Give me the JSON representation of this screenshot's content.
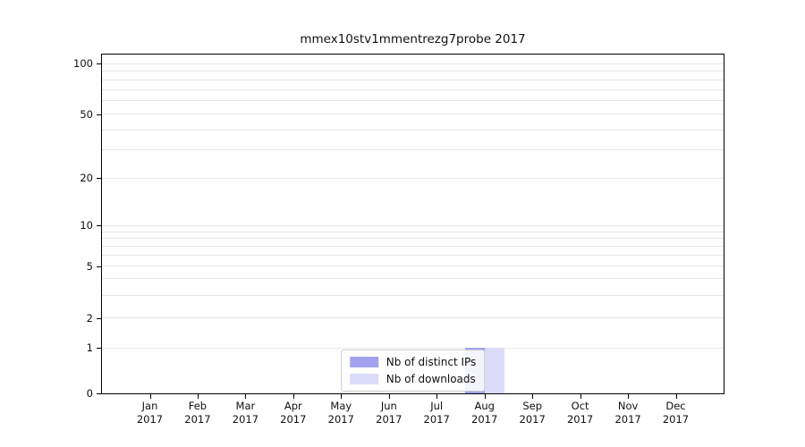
{
  "chart_data": {
    "type": "bar",
    "title": "mmex10stv1mmentrezg7probe 2017",
    "x": {
      "months": [
        "Jan",
        "Feb",
        "Mar",
        "Apr",
        "May",
        "Jun",
        "Jul",
        "Aug",
        "Sep",
        "Oct",
        "Nov",
        "Dec"
      ],
      "year": "2017"
    },
    "series": [
      {
        "name": "Nb of distinct IPs",
        "color": "#a2a2f0",
        "values": [
          0,
          0,
          0,
          0,
          0,
          0,
          0,
          1,
          0,
          0,
          0,
          0
        ]
      },
      {
        "name": "Nb of downloads",
        "color": "#dbdbf9",
        "values": [
          0,
          0,
          0,
          0,
          0,
          0,
          0,
          1,
          0,
          0,
          0,
          0
        ]
      }
    ],
    "y_axis": {
      "scale": "symlog",
      "tick_values": [
        0,
        1,
        2,
        5,
        10,
        20,
        50,
        100
      ],
      "tick_labels": [
        "0",
        "1",
        "2",
        "5",
        "10",
        "20",
        "50",
        "100"
      ],
      "minor_gridline_values": [
        3,
        4,
        6,
        7,
        8,
        9,
        30,
        40,
        60,
        70,
        80,
        90
      ]
    },
    "legend": {
      "position": "lower center",
      "entries": [
        "Nb of distinct IPs",
        "Nb of downloads"
      ]
    },
    "grid": true
  }
}
